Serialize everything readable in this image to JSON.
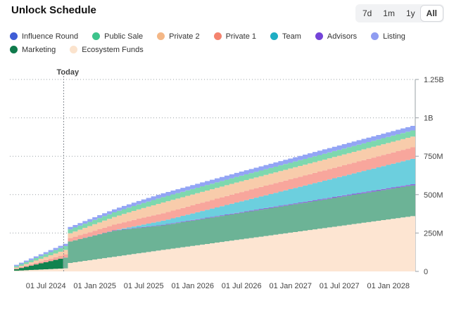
{
  "header": {
    "title": "Unlock Schedule",
    "ranges": [
      "7d",
      "1m",
      "1y",
      "All"
    ],
    "active_range": "All"
  },
  "chart_data": {
    "type": "area",
    "title": "Unlock Schedule",
    "style": "stepped-stacked",
    "today_label": "Today",
    "today_index": 10,
    "ylim": [
      0,
      1250000000
    ],
    "y_ticks": [
      0,
      250000000,
      500000000,
      750000000,
      1000000000,
      1250000000
    ],
    "y_tick_labels": [
      "0",
      "250M",
      "500M",
      "750M",
      "1B",
      "1.25B"
    ],
    "x_ticks": [
      {
        "index": 6,
        "label": "01 Jul 2024"
      },
      {
        "index": 16,
        "label": "01 Jan 2025"
      },
      {
        "index": 26,
        "label": "01 Jul 2025"
      },
      {
        "index": 36,
        "label": "01 Jan 2026"
      },
      {
        "index": 46,
        "label": "01 Jul 2026"
      },
      {
        "index": 56,
        "label": "01 Jan 2027"
      },
      {
        "index": 66,
        "label": "01 Jul 2027"
      },
      {
        "index": 76,
        "label": "01 Jan 2028"
      }
    ],
    "step_count": 82,
    "series": [
      {
        "name": "Ecosystem Funds",
        "color": "#fde5d2",
        "points": [
          [
            0,
            5000000
          ],
          [
            10,
            20000000
          ],
          [
            11,
            55000000
          ],
          [
            30,
            140000000
          ],
          [
            81,
            360000000
          ]
        ]
      },
      {
        "name": "Marketing",
        "color": "#6cb396",
        "colorEarly": "#10834f",
        "earlyEnd": 10,
        "points": [
          [
            0,
            10000000
          ],
          [
            10,
            70000000
          ],
          [
            11,
            140000000
          ],
          [
            20,
            170000000
          ],
          [
            30,
            160000000
          ],
          [
            81,
            200000000
          ]
        ]
      },
      {
        "name": "Listing",
        "color": "#9b9ef0",
        "points": [
          [
            0,
            0
          ],
          [
            81,
            0
          ]
        ]
      },
      {
        "name": "Advisors",
        "color": "#8c6ad8",
        "points": [
          [
            0,
            0
          ],
          [
            12,
            0
          ],
          [
            22,
            3000000
          ],
          [
            81,
            8000000
          ]
        ]
      },
      {
        "name": "Team",
        "color": "#6ccfde",
        "points": [
          [
            0,
            0
          ],
          [
            20,
            0
          ],
          [
            24,
            10000000
          ],
          [
            81,
            165000000
          ]
        ]
      },
      {
        "name": "Private 1",
        "color": "#f8a69c",
        "points": [
          [
            0,
            5000000
          ],
          [
            10,
            20000000
          ],
          [
            25,
            45000000
          ],
          [
            45,
            60000000
          ],
          [
            81,
            75000000
          ]
        ]
      },
      {
        "name": "Private 2",
        "color": "#f8ccab",
        "points": [
          [
            0,
            5000000
          ],
          [
            10,
            30000000
          ],
          [
            30,
            70000000
          ],
          [
            81,
            70000000
          ]
        ]
      },
      {
        "name": "Public Sale",
        "color": "#7ed8ae",
        "points": [
          [
            0,
            10000000
          ],
          [
            10,
            25000000
          ],
          [
            30,
            35000000
          ],
          [
            81,
            40000000
          ]
        ]
      },
      {
        "name": "Influence Round",
        "color": "#93a5f5",
        "points": [
          [
            0,
            8000000
          ],
          [
            10,
            15000000
          ],
          [
            30,
            25000000
          ],
          [
            81,
            30000000
          ]
        ]
      }
    ]
  },
  "legend": [
    {
      "label": "Influence Round",
      "color": "#3f5dd6"
    },
    {
      "label": "Public Sale",
      "color": "#3dc48c"
    },
    {
      "label": "Private 2",
      "color": "#f4b786"
    },
    {
      "label": "Private 1",
      "color": "#f4836e"
    },
    {
      "label": "Team",
      "color": "#1eaec4"
    },
    {
      "label": "Advisors",
      "color": "#7444d8"
    },
    {
      "label": "Listing",
      "color": "#8f9cf1"
    },
    {
      "label": "Marketing",
      "color": "#0f7a4c"
    },
    {
      "label": "Ecosystem Funds",
      "color": "#fbe3cd"
    }
  ]
}
